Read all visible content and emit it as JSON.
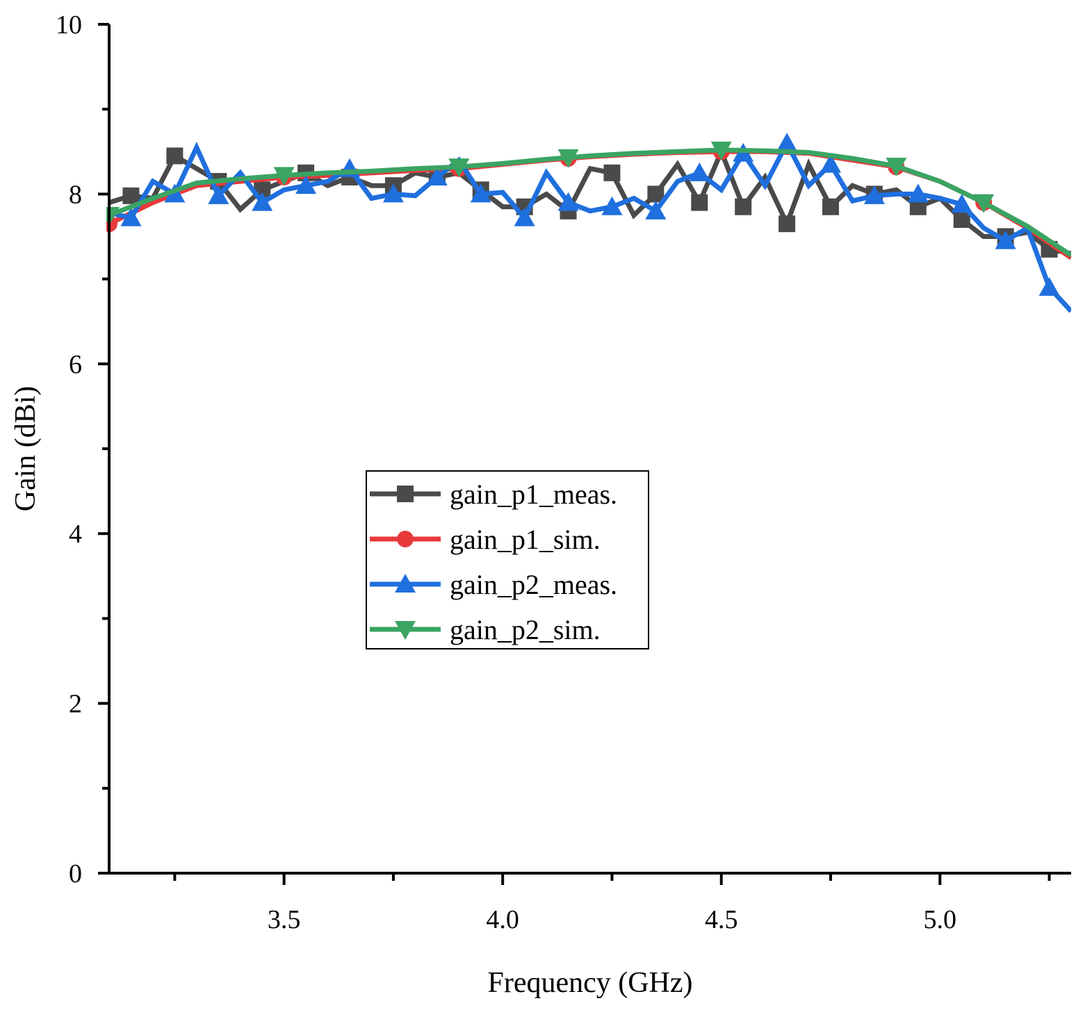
{
  "chart_data": {
    "type": "line",
    "title": "",
    "xlabel": "Frequency (GHz)",
    "ylabel": "Gain (dBi)",
    "xlim": [
      3.1,
      5.3
    ],
    "ylim": [
      0,
      10
    ],
    "x_ticks": [
      3.5,
      4.0,
      4.5,
      5.0
    ],
    "x_tick_labels": [
      "3.5",
      "4.0",
      "4.5",
      "5.0"
    ],
    "x_minor_ticks": [
      3.25,
      3.75,
      4.25,
      4.75,
      5.25
    ],
    "y_ticks": [
      0,
      2,
      4,
      6,
      8,
      10
    ],
    "y_tick_labels": [
      "0",
      "2",
      "4",
      "6",
      "8",
      "10"
    ],
    "y_minor_ticks": [
      1,
      3,
      5,
      7,
      9
    ],
    "legend_position": "center",
    "series": [
      {
        "name": "gain_p1_meas.",
        "color": "#4a4a4a",
        "marker": "square",
        "x": [
          3.1,
          3.15,
          3.2,
          3.25,
          3.3,
          3.35,
          3.4,
          3.45,
          3.5,
          3.55,
          3.6,
          3.65,
          3.7,
          3.75,
          3.8,
          3.85,
          3.9,
          3.95,
          4.0,
          4.05,
          4.1,
          4.15,
          4.2,
          4.25,
          4.3,
          4.35,
          4.4,
          4.45,
          4.5,
          4.55,
          4.6,
          4.65,
          4.7,
          4.75,
          4.8,
          4.85,
          4.9,
          4.95,
          5.0,
          5.05,
          5.1,
          5.15,
          5.2,
          5.25,
          5.3
        ],
        "y": [
          7.9,
          7.98,
          7.95,
          8.45,
          8.3,
          8.15,
          7.82,
          8.05,
          8.15,
          8.25,
          8.1,
          8.2,
          8.1,
          8.1,
          8.25,
          8.2,
          8.25,
          8.05,
          7.85,
          7.85,
          8.0,
          7.8,
          8.3,
          8.25,
          7.75,
          8.0,
          8.35,
          7.9,
          8.5,
          7.85,
          8.2,
          7.65,
          8.35,
          7.85,
          8.1,
          8.0,
          8.05,
          7.85,
          7.95,
          7.7,
          7.5,
          7.5,
          7.55,
          7.35,
          7.3
        ],
        "markers_x": [
          3.15,
          3.25,
          3.35,
          3.45,
          3.55,
          3.65,
          3.75,
          3.85,
          3.95,
          4.05,
          4.15,
          4.25,
          4.35,
          4.45,
          4.55,
          4.65,
          4.75,
          4.85,
          4.95,
          5.05,
          5.15,
          5.25
        ]
      },
      {
        "name": "gain_p1_sim.",
        "color": "#e8393a",
        "marker": "circle",
        "x": [
          3.1,
          3.2,
          3.3,
          3.4,
          3.5,
          3.6,
          3.7,
          3.8,
          3.9,
          4.0,
          4.1,
          4.2,
          4.3,
          4.4,
          4.5,
          4.6,
          4.7,
          4.8,
          4.9,
          5.0,
          5.1,
          5.2,
          5.3
        ],
        "y": [
          7.65,
          7.9,
          8.1,
          8.15,
          8.2,
          8.22,
          8.25,
          8.28,
          8.3,
          8.35,
          8.4,
          8.44,
          8.47,
          8.49,
          8.5,
          8.5,
          8.48,
          8.4,
          8.32,
          8.15,
          7.9,
          7.6,
          7.25
        ],
        "markers_x": [
          3.1,
          3.5,
          3.9,
          4.15,
          4.5,
          4.9,
          5.1
        ]
      },
      {
        "name": "gain_p2_meas.",
        "color": "#1f6fde",
        "marker": "triangle-up",
        "x": [
          3.1,
          3.15,
          3.2,
          3.25,
          3.3,
          3.35,
          3.4,
          3.45,
          3.5,
          3.55,
          3.6,
          3.65,
          3.7,
          3.75,
          3.8,
          3.85,
          3.9,
          3.95,
          4.0,
          4.05,
          4.1,
          4.15,
          4.2,
          4.25,
          4.3,
          4.35,
          4.4,
          4.45,
          4.5,
          4.55,
          4.6,
          4.65,
          4.7,
          4.75,
          4.8,
          4.85,
          4.9,
          4.95,
          5.0,
          5.05,
          5.1,
          5.15,
          5.2,
          5.25,
          5.3
        ],
        "y": [
          7.78,
          7.72,
          8.15,
          8.0,
          8.55,
          7.98,
          8.25,
          7.9,
          8.05,
          8.1,
          8.15,
          8.3,
          7.95,
          8.0,
          7.98,
          8.2,
          8.4,
          8.0,
          8.02,
          7.72,
          8.25,
          7.9,
          7.8,
          7.85,
          7.95,
          7.8,
          8.15,
          8.25,
          8.05,
          8.48,
          8.1,
          8.6,
          8.1,
          8.35,
          7.92,
          7.98,
          8.0,
          8.0,
          7.95,
          7.88,
          7.6,
          7.45,
          7.6,
          6.9,
          6.62
        ],
        "markers_x": [
          3.15,
          3.25,
          3.35,
          3.45,
          3.55,
          3.65,
          3.75,
          3.85,
          3.95,
          4.05,
          4.15,
          4.25,
          4.35,
          4.45,
          4.55,
          4.65,
          4.75,
          4.85,
          4.95,
          5.05,
          5.15,
          5.25
        ]
      },
      {
        "name": "gain_p2_sim.",
        "color": "#3aa463",
        "marker": "triangle-down",
        "x": [
          3.1,
          3.2,
          3.3,
          3.4,
          3.5,
          3.6,
          3.7,
          3.8,
          3.9,
          4.0,
          4.1,
          4.2,
          4.3,
          4.4,
          4.5,
          4.6,
          4.7,
          4.8,
          4.9,
          5.0,
          5.1,
          5.2,
          5.3
        ],
        "y": [
          7.75,
          7.95,
          8.13,
          8.18,
          8.22,
          8.25,
          8.27,
          8.3,
          8.32,
          8.36,
          8.41,
          8.45,
          8.48,
          8.5,
          8.52,
          8.51,
          8.49,
          8.42,
          8.33,
          8.15,
          7.9,
          7.62,
          7.28
        ],
        "markers_x": [
          3.1,
          3.5,
          3.9,
          4.15,
          4.5,
          4.9,
          5.1
        ]
      }
    ]
  }
}
